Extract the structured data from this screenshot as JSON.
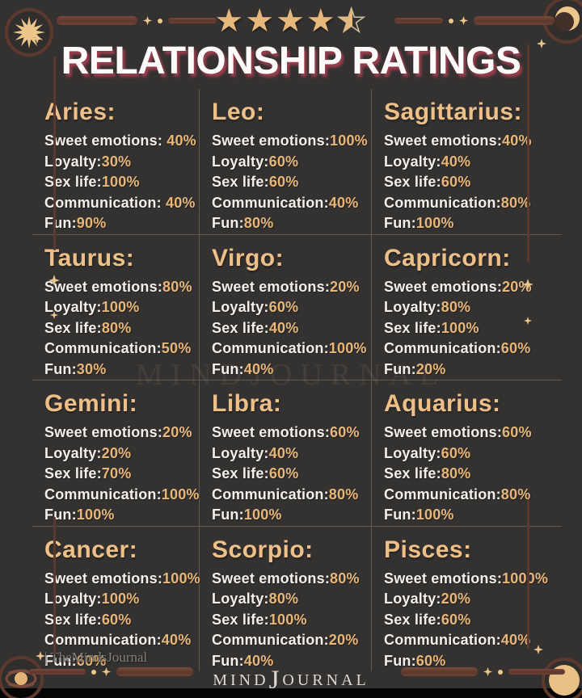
{
  "rating": {
    "full_stars": 4,
    "half_stars": 1,
    "star_glyph": "★"
  },
  "title": "RELATIONSHIP RATINGS",
  "signs": [
    {
      "name": "Aries:",
      "lines": [
        {
          "l": "Sweet emotions: ",
          "v": "40%"
        },
        {
          "l": "Loyalty:",
          "v": "30%"
        },
        {
          "l": "Sex life:",
          "v": "100%"
        },
        {
          "l": "Communication: ",
          "v": "40%"
        },
        {
          "l": "Fun:",
          "v": "90%"
        }
      ]
    },
    {
      "name": "Leo:",
      "lines": [
        {
          "l": "Sweet emotions:",
          "v": "100%"
        },
        {
          "l": "Loyalty:",
          "v": "60%"
        },
        {
          "l": "Sex life:",
          "v": "60%"
        },
        {
          "l": "Communication:",
          "v": "40%"
        },
        {
          "l": "Fun:",
          "v": "80%"
        }
      ]
    },
    {
      "name": "Sagittarius:",
      "lines": [
        {
          "l": "Sweet emotions:",
          "v": "40%"
        },
        {
          "l": "Loyalty:",
          "v": "40%"
        },
        {
          "l": "Sex life:",
          "v": "60%"
        },
        {
          "l": "Communication:",
          "v": "80%"
        },
        {
          "l": "Fun:",
          "v": "100%"
        }
      ]
    },
    {
      "name": "Taurus:",
      "lines": [
        {
          "l": "Sweet emotions:",
          "v": "80%"
        },
        {
          "l": "Loyalty:",
          "v": "100%"
        },
        {
          "l": "Sex life:",
          "v": "80%"
        },
        {
          "l": "Communication:",
          "v": "50%"
        },
        {
          "l": "Fun:",
          "v": "30%"
        }
      ]
    },
    {
      "name": "Virgo:",
      "lines": [
        {
          "l": "Sweet emotions:",
          "v": "20%"
        },
        {
          "l": "Loyalty:",
          "v": "60%"
        },
        {
          "l": "Sex life:",
          "v": "40%"
        },
        {
          "l": "Communication:",
          "v": "100%"
        },
        {
          "l": "Fun:",
          "v": "40%"
        }
      ]
    },
    {
      "name": "Capricorn:",
      "lines": [
        {
          "l": "Sweet emotions:",
          "v": "20%"
        },
        {
          "l": "Loyalty:",
          "v": "80%"
        },
        {
          "l": "Sex life:",
          "v": "100%"
        },
        {
          "l": "Communication:",
          "v": "60%"
        },
        {
          "l": "Fun:",
          "v": "20%"
        }
      ]
    },
    {
      "name": "Gemini:",
      "lines": [
        {
          "l": "Sweet emotions:",
          "v": "20%"
        },
        {
          "l": "Loyalty:",
          "v": "20%"
        },
        {
          "l": "Sex life:",
          "v": "70%"
        },
        {
          "l": "Communication:",
          "v": "100%"
        },
        {
          "l": "Fun:",
          "v": "100%"
        }
      ]
    },
    {
      "name": "Libra:",
      "lines": [
        {
          "l": "Sweet emotions:",
          "v": "60%"
        },
        {
          "l": "Loyalty:",
          "v": "40%"
        },
        {
          "l": "Sex life:",
          "v": "60%"
        },
        {
          "l": "Communication:",
          "v": "80%"
        },
        {
          "l": "Fun:",
          "v": "100%"
        }
      ]
    },
    {
      "name": "Aquarius:",
      "lines": [
        {
          "l": "Sweet emotions:",
          "v": "60%"
        },
        {
          "l": "Loyalty:",
          "v": "60%"
        },
        {
          "l": "Sex life:",
          "v": "80%"
        },
        {
          "l": "Communication:",
          "v": "80%"
        },
        {
          "l": "Fun:",
          "v": "100%"
        }
      ]
    },
    {
      "name": "Cancer:",
      "lines": [
        {
          "l": "Sweet emotions:",
          "v": "100%"
        },
        {
          "l": "Loyalty:",
          "v": "100%"
        },
        {
          "l": "Sex life:",
          "v": "60%"
        },
        {
          "l": "Communication:",
          "v": "40%"
        },
        {
          "l": "Fun:",
          "v": "60%"
        }
      ]
    },
    {
      "name": "Scorpio:",
      "lines": [
        {
          "l": "Sweet emotions:",
          "v": "80%"
        },
        {
          "l": "Loyalty:",
          "v": "80%"
        },
        {
          "l": "Sex life:",
          "v": "100%"
        },
        {
          "l": "Communication:",
          "v": "20%"
        },
        {
          "l": "Fun:",
          "v": "40%"
        }
      ]
    },
    {
      "name": "Pisces:",
      "lines": [
        {
          "l": "Sweet emotions:",
          "v": "1000%"
        },
        {
          "l": "Loyalty:",
          "v": "20%"
        },
        {
          "l": "Sex life:",
          "v": "60%"
        },
        {
          "l": "Communication:",
          "v": "40%"
        },
        {
          "l": "Fun:",
          "v": "60%"
        }
      ]
    }
  ],
  "footer": {
    "site_watermark": "| TheMindsJournal",
    "logo_part1": "MIND",
    "logo_part2": "J",
    "logo_part3": "OURNAL",
    "faint_watermark": "MINDJOURNAL"
  },
  "colors": {
    "background": "#343231",
    "sign_gold": "#eec088",
    "value_gold": "#e7b678",
    "label_white": "#f3f0ec",
    "title_shadow": "#a33e50",
    "ornament_brown": "#6e4236",
    "ornament_gold": "#ecc68b"
  }
}
